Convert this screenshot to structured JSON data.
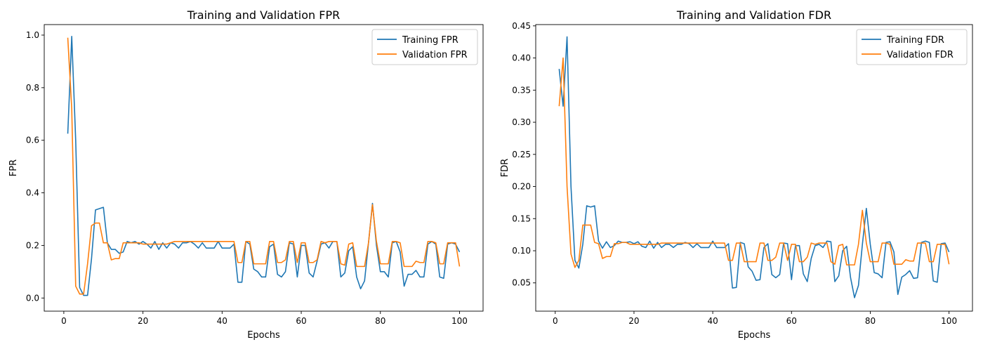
{
  "chart_data": [
    {
      "type": "line",
      "title": "Training and Validation FPR",
      "xlabel": "Epochs",
      "ylabel": "FPR",
      "xlim": [
        -4.95,
        105.95
      ],
      "ylim": [
        -0.05,
        1.04
      ],
      "xticks": [
        0,
        20,
        40,
        60,
        80,
        100
      ],
      "xtick_labels": [
        "0",
        "20",
        "40",
        "60",
        "80",
        "100"
      ],
      "yticks": [
        0.0,
        0.2,
        0.4,
        0.6,
        0.8,
        1.0
      ],
      "ytick_labels": [
        "0.0",
        "0.2",
        "0.4",
        "0.6",
        "0.8",
        "1.0"
      ],
      "grid": false,
      "legend_position": "top-right",
      "series": [
        {
          "name": "Training FPR",
          "color": "#1f77b4",
          "values": [
            0.625,
            0.995,
            0.6,
            0.04,
            0.01,
            0.01,
            0.15,
            0.335,
            0.34,
            0.345,
            0.21,
            0.185,
            0.185,
            0.17,
            0.175,
            0.215,
            0.21,
            0.215,
            0.205,
            0.215,
            0.205,
            0.19,
            0.215,
            0.185,
            0.21,
            0.19,
            0.21,
            0.205,
            0.19,
            0.21,
            0.21,
            0.215,
            0.205,
            0.19,
            0.21,
            0.19,
            0.19,
            0.19,
            0.215,
            0.19,
            0.19,
            0.19,
            0.205,
            0.06,
            0.06,
            0.215,
            0.205,
            0.11,
            0.1,
            0.08,
            0.08,
            0.195,
            0.205,
            0.09,
            0.08,
            0.1,
            0.21,
            0.205,
            0.08,
            0.2,
            0.2,
            0.095,
            0.08,
            0.14,
            0.205,
            0.21,
            0.19,
            0.215,
            0.215,
            0.08,
            0.095,
            0.18,
            0.195,
            0.08,
            0.035,
            0.065,
            0.21,
            0.36,
            0.2,
            0.1,
            0.1,
            0.08,
            0.21,
            0.215,
            0.175,
            0.045,
            0.09,
            0.09,
            0.105,
            0.08,
            0.08,
            0.205,
            0.215,
            0.205,
            0.08,
            0.075,
            0.205,
            0.21,
            0.205,
            0.175
          ]
        },
        {
          "name": "Validation FPR",
          "color": "#ff7f0e",
          "values": [
            0.99,
            0.72,
            0.045,
            0.015,
            0.015,
            0.13,
            0.275,
            0.285,
            0.285,
            0.21,
            0.21,
            0.145,
            0.15,
            0.15,
            0.21,
            0.21,
            0.21,
            0.21,
            0.21,
            0.205,
            0.205,
            0.205,
            0.205,
            0.205,
            0.205,
            0.205,
            0.21,
            0.215,
            0.215,
            0.215,
            0.215,
            0.215,
            0.215,
            0.215,
            0.215,
            0.215,
            0.215,
            0.215,
            0.215,
            0.215,
            0.215,
            0.215,
            0.215,
            0.135,
            0.135,
            0.215,
            0.215,
            0.13,
            0.13,
            0.13,
            0.13,
            0.215,
            0.215,
            0.135,
            0.135,
            0.145,
            0.215,
            0.215,
            0.135,
            0.21,
            0.21,
            0.135,
            0.135,
            0.145,
            0.215,
            0.21,
            0.215,
            0.215,
            0.215,
            0.13,
            0.125,
            0.205,
            0.21,
            0.12,
            0.12,
            0.12,
            0.21,
            0.355,
            0.215,
            0.13,
            0.13,
            0.13,
            0.215,
            0.215,
            0.21,
            0.12,
            0.12,
            0.12,
            0.14,
            0.135,
            0.135,
            0.215,
            0.215,
            0.21,
            0.13,
            0.13,
            0.21,
            0.21,
            0.21,
            0.12
          ]
        }
      ]
    },
    {
      "type": "line",
      "title": "Training and Validation FDR",
      "xlabel": "Epochs",
      "ylabel": "FDR",
      "xlim": [
        -4.95,
        105.95
      ],
      "ylim": [
        0.006,
        0.452
      ],
      "xticks": [
        0,
        20,
        40,
        60,
        80,
        100
      ],
      "xtick_labels": [
        "0",
        "20",
        "40",
        "60",
        "80",
        "100"
      ],
      "yticks": [
        0.05,
        0.1,
        0.15,
        0.2,
        0.25,
        0.3,
        0.35,
        0.4,
        0.45
      ],
      "ytick_labels": [
        "0.05",
        "0.10",
        "0.15",
        "0.20",
        "0.25",
        "0.30",
        "0.35",
        "0.40",
        "0.45"
      ],
      "grid": false,
      "legend_position": "top-right",
      "series": [
        {
          "name": "Training FDR",
          "color": "#1f77b4",
          "values": [
            0.383,
            0.325,
            0.433,
            0.2,
            0.085,
            0.073,
            0.11,
            0.17,
            0.168,
            0.17,
            0.115,
            0.104,
            0.114,
            0.105,
            0.108,
            0.115,
            0.113,
            0.113,
            0.114,
            0.111,
            0.114,
            0.107,
            0.105,
            0.115,
            0.104,
            0.113,
            0.105,
            0.11,
            0.11,
            0.105,
            0.11,
            0.11,
            0.113,
            0.111,
            0.105,
            0.111,
            0.105,
            0.105,
            0.105,
            0.115,
            0.105,
            0.105,
            0.105,
            0.111,
            0.042,
            0.043,
            0.113,
            0.111,
            0.075,
            0.068,
            0.054,
            0.055,
            0.105,
            0.111,
            0.063,
            0.058,
            0.063,
            0.112,
            0.111,
            0.055,
            0.108,
            0.108,
            0.064,
            0.052,
            0.088,
            0.108,
            0.11,
            0.105,
            0.115,
            0.114,
            0.052,
            0.061,
            0.1,
            0.107,
            0.058,
            0.027,
            0.046,
            0.11,
            0.166,
            0.11,
            0.066,
            0.064,
            0.058,
            0.113,
            0.114,
            0.098,
            0.032,
            0.059,
            0.063,
            0.069,
            0.057,
            0.058,
            0.113,
            0.115,
            0.113,
            0.053,
            0.051,
            0.111,
            0.112,
            0.098
          ]
        },
        {
          "name": "Validation FDR",
          "color": "#ff7f0e",
          "values": [
            0.325,
            0.4,
            0.2,
            0.095,
            0.074,
            0.085,
            0.14,
            0.14,
            0.14,
            0.113,
            0.111,
            0.088,
            0.091,
            0.091,
            0.111,
            0.111,
            0.113,
            0.113,
            0.11,
            0.11,
            0.11,
            0.11,
            0.11,
            0.11,
            0.11,
            0.11,
            0.112,
            0.112,
            0.112,
            0.112,
            0.112,
            0.112,
            0.112,
            0.112,
            0.112,
            0.112,
            0.112,
            0.112,
            0.112,
            0.112,
            0.112,
            0.112,
            0.112,
            0.085,
            0.085,
            0.112,
            0.112,
            0.083,
            0.083,
            0.083,
            0.083,
            0.112,
            0.112,
            0.085,
            0.085,
            0.09,
            0.112,
            0.112,
            0.085,
            0.11,
            0.11,
            0.083,
            0.083,
            0.09,
            0.112,
            0.11,
            0.112,
            0.112,
            0.112,
            0.083,
            0.079,
            0.108,
            0.11,
            0.078,
            0.078,
            0.078,
            0.11,
            0.163,
            0.112,
            0.083,
            0.083,
            0.083,
            0.112,
            0.112,
            0.11,
            0.079,
            0.079,
            0.079,
            0.086,
            0.084,
            0.084,
            0.112,
            0.112,
            0.112,
            0.083,
            0.083,
            0.11,
            0.11,
            0.11,
            0.079
          ]
        }
      ]
    }
  ]
}
